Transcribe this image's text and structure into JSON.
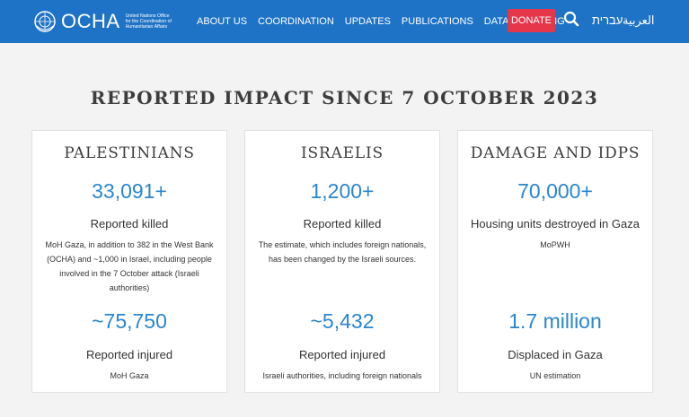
{
  "header": {
    "logo_text": "OCHA",
    "logo_subtitle": [
      "United Nations Office",
      "for the Coordination of",
      "Humanitarian Affairs"
    ],
    "nav": [
      "ABOUT US",
      "COORDINATION",
      "UPDATES",
      "PUBLICATIONS",
      "DATA",
      "FUNDING"
    ],
    "donate_label": "DONATE",
    "search_icon": "search-icon",
    "languages": {
      "hebrew": "עברית",
      "arabic": "العربية"
    },
    "colors": {
      "bar": "#1f73c6",
      "donate": "#e6374a"
    }
  },
  "page_title": "REPORTED IMPACT SINCE 7 OCTOBER 2023",
  "cards": [
    {
      "heading": "PALESTINIANS",
      "top_value": "33,091+",
      "top_label": "Reported killed",
      "top_note": "MoH Gaza, in addition to 382 in the West Bank (OCHA) and ~1,000 in Israel, including people involved in the 7 October attack (Israeli authorities)",
      "bottom_value": "~75,750",
      "bottom_label": "Reported injured",
      "bottom_note": "MoH Gaza"
    },
    {
      "heading": "ISRAELIS",
      "top_value": "1,200+",
      "top_label": "Reported killed",
      "top_note": "The estimate, which includes foreign nationals, has been changed by the Israeli sources.",
      "bottom_value": "~5,432",
      "bottom_label": "Reported injured",
      "bottom_note": "Israeli authorities, including foreign nationals"
    },
    {
      "heading": "DAMAGE AND IDPS",
      "top_value": "70,000+",
      "top_label": "Housing units destroyed in Gaza",
      "top_note": "MoPWH",
      "bottom_value": "1.7 million",
      "bottom_label": "Displaced in Gaza",
      "bottom_note": "UN estimation"
    }
  ],
  "accent_color": "#2b86cd"
}
